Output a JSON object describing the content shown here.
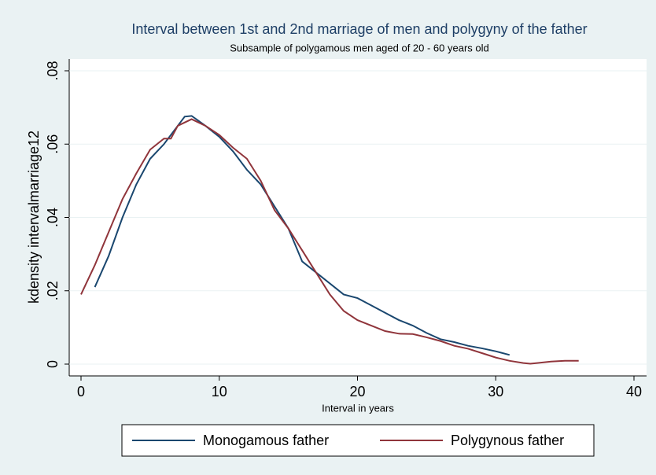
{
  "chart_data": {
    "type": "line",
    "title": "Interval between 1st and 2nd marriage of men and polygyny of the father",
    "subtitle": "Subsample of polygamous men aged of 20 - 60 years old",
    "x_label": "Interval in years",
    "y_label": "kdensity intervalmarriage12",
    "xlim": [
      0,
      40
    ],
    "xticks": [
      0,
      10,
      20,
      30,
      40
    ],
    "ylim": [
      0,
      0.08
    ],
    "yticks": [
      {
        "value": 0,
        "label": "0"
      },
      {
        "value": 0.02,
        "label": ".02"
      },
      {
        "value": 0.04,
        "label": ".04"
      },
      {
        "value": 0.06,
        "label": ".06"
      },
      {
        "value": 0.08,
        "label": ".08"
      }
    ],
    "grid": true,
    "series": [
      {
        "name": "Monogamous father",
        "color": "#1a476f",
        "x": [
          1,
          2,
          3,
          4,
          5,
          6,
          7,
          7.5,
          8,
          9,
          10,
          11,
          12,
          13,
          14,
          15,
          16,
          17,
          18,
          19,
          20,
          21,
          22,
          23,
          24,
          25,
          26,
          27,
          28,
          29,
          30,
          31
        ],
        "values": [
          0.021,
          0.0295,
          0.04,
          0.049,
          0.056,
          0.06,
          0.065,
          0.0675,
          0.0677,
          0.065,
          0.062,
          0.058,
          0.053,
          0.049,
          0.043,
          0.037,
          0.028,
          0.025,
          0.022,
          0.019,
          0.018,
          0.016,
          0.014,
          0.012,
          0.0105,
          0.0085,
          0.0068,
          0.006,
          0.005,
          0.0043,
          0.0035,
          0.0025
        ]
      },
      {
        "name": "Polygynous father",
        "color": "#90353b",
        "x": [
          0,
          1,
          2,
          3,
          4,
          5,
          6,
          6.5,
          7,
          8,
          9,
          10,
          11,
          12,
          13,
          14,
          15,
          16,
          17,
          18,
          19,
          20,
          21,
          22,
          23,
          24,
          25,
          26,
          27,
          28,
          29,
          30,
          31,
          32,
          32.5,
          33,
          34,
          35,
          36
        ],
        "values": [
          0.019,
          0.027,
          0.036,
          0.045,
          0.052,
          0.0585,
          0.0615,
          0.0615,
          0.065,
          0.0668,
          0.065,
          0.0625,
          0.059,
          0.056,
          0.05,
          0.042,
          0.037,
          0.031,
          0.025,
          0.019,
          0.0145,
          0.012,
          0.0105,
          0.009,
          0.0083,
          0.0082,
          0.0073,
          0.0063,
          0.005,
          0.0042,
          0.003,
          0.0018,
          0.0009,
          0.0003,
          0.0001,
          0.0003,
          0.0007,
          0.0009,
          0.0009
        ]
      }
    ]
  }
}
